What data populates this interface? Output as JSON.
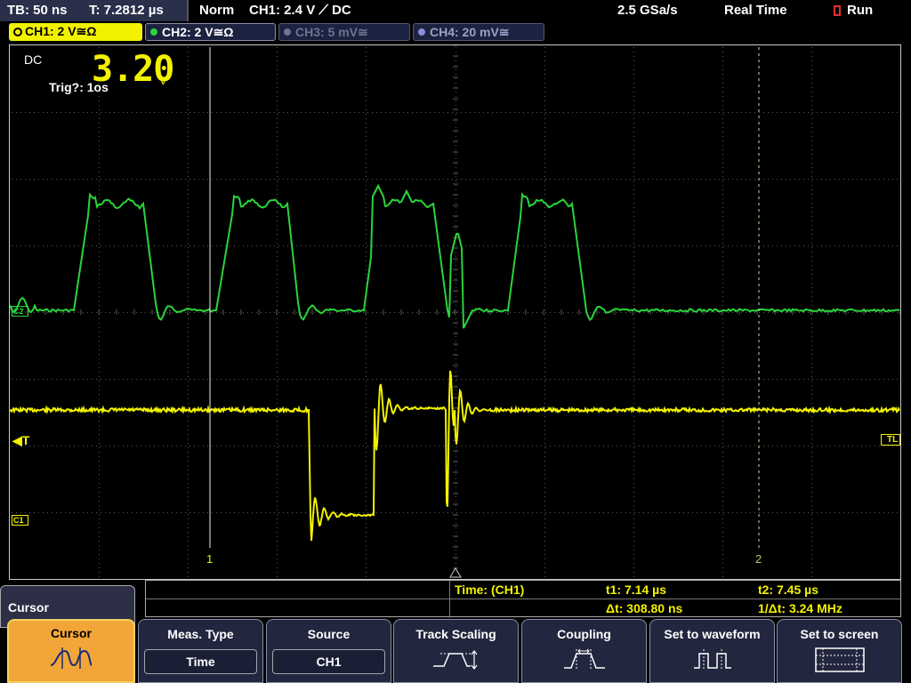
{
  "topbar": {
    "timebase": "TB: 50 ns",
    "trigger_time": "T: 7.2812 µs",
    "trigger_mode": "Norm",
    "trigger_info": "CH1: 2.4 V ⟋ DC",
    "sample_rate": "2.5 GSa/s",
    "acq_mode": "Real Time",
    "run_state": "Run"
  },
  "channel_tabs": [
    {
      "label": "CH1: 2 V≅Ω",
      "color": "#f2f200",
      "active": true
    },
    {
      "label": "CH2: 2 V≅Ω",
      "color": "#2ad43a",
      "active": false
    },
    {
      "label": "CH3: 5 mV≅",
      "color": "#6d7390",
      "active": false
    },
    {
      "label": "CH4: 20 mV≅",
      "color": "#8a90d8",
      "active": false
    }
  ],
  "screen": {
    "coupling_label": "DC",
    "voltage_readout": "3.20",
    "voltage_unit": "V",
    "trig_label": "Trig?: 1os",
    "ch2_marker": "C2",
    "ch1_marker": "C1",
    "trigger_marker": "◀T",
    "trigger_level_marker": "TL",
    "cursor1_label": "1",
    "cursor2_label": "2"
  },
  "cursor_panel": {
    "title": "Cursor",
    "measure_label": "Time:  (CH1)",
    "t1": "t1: 7.14 µs",
    "t2": "t2: 7.45 µs",
    "dt": "Δt: 308.80 ns",
    "inv_dt": "1/Δt: 3.24 MHz"
  },
  "softkeys": {
    "cursor": {
      "label": "Cursor",
      "icon": "cursor-waveform-icon"
    },
    "meas_type": {
      "label": "Meas. Type",
      "value": "Time"
    },
    "source": {
      "label": "Source",
      "value": "CH1"
    },
    "track_scaling": {
      "label": "Track Scaling",
      "icon": "track-scaling-icon"
    },
    "coupling": {
      "label": "Coupling",
      "icon": "coupling-icon"
    },
    "set_to_waveform": {
      "label": "Set to waveform",
      "icon": "set-to-waveform-icon"
    },
    "set_to_screen": {
      "label": "Set to screen",
      "icon": "set-to-screen-icon"
    }
  },
  "colors": {
    "ch1": "#f2f200",
    "ch2": "#2ad43a",
    "grid": "#5a5a5a",
    "accent": "#f2a63a"
  }
}
